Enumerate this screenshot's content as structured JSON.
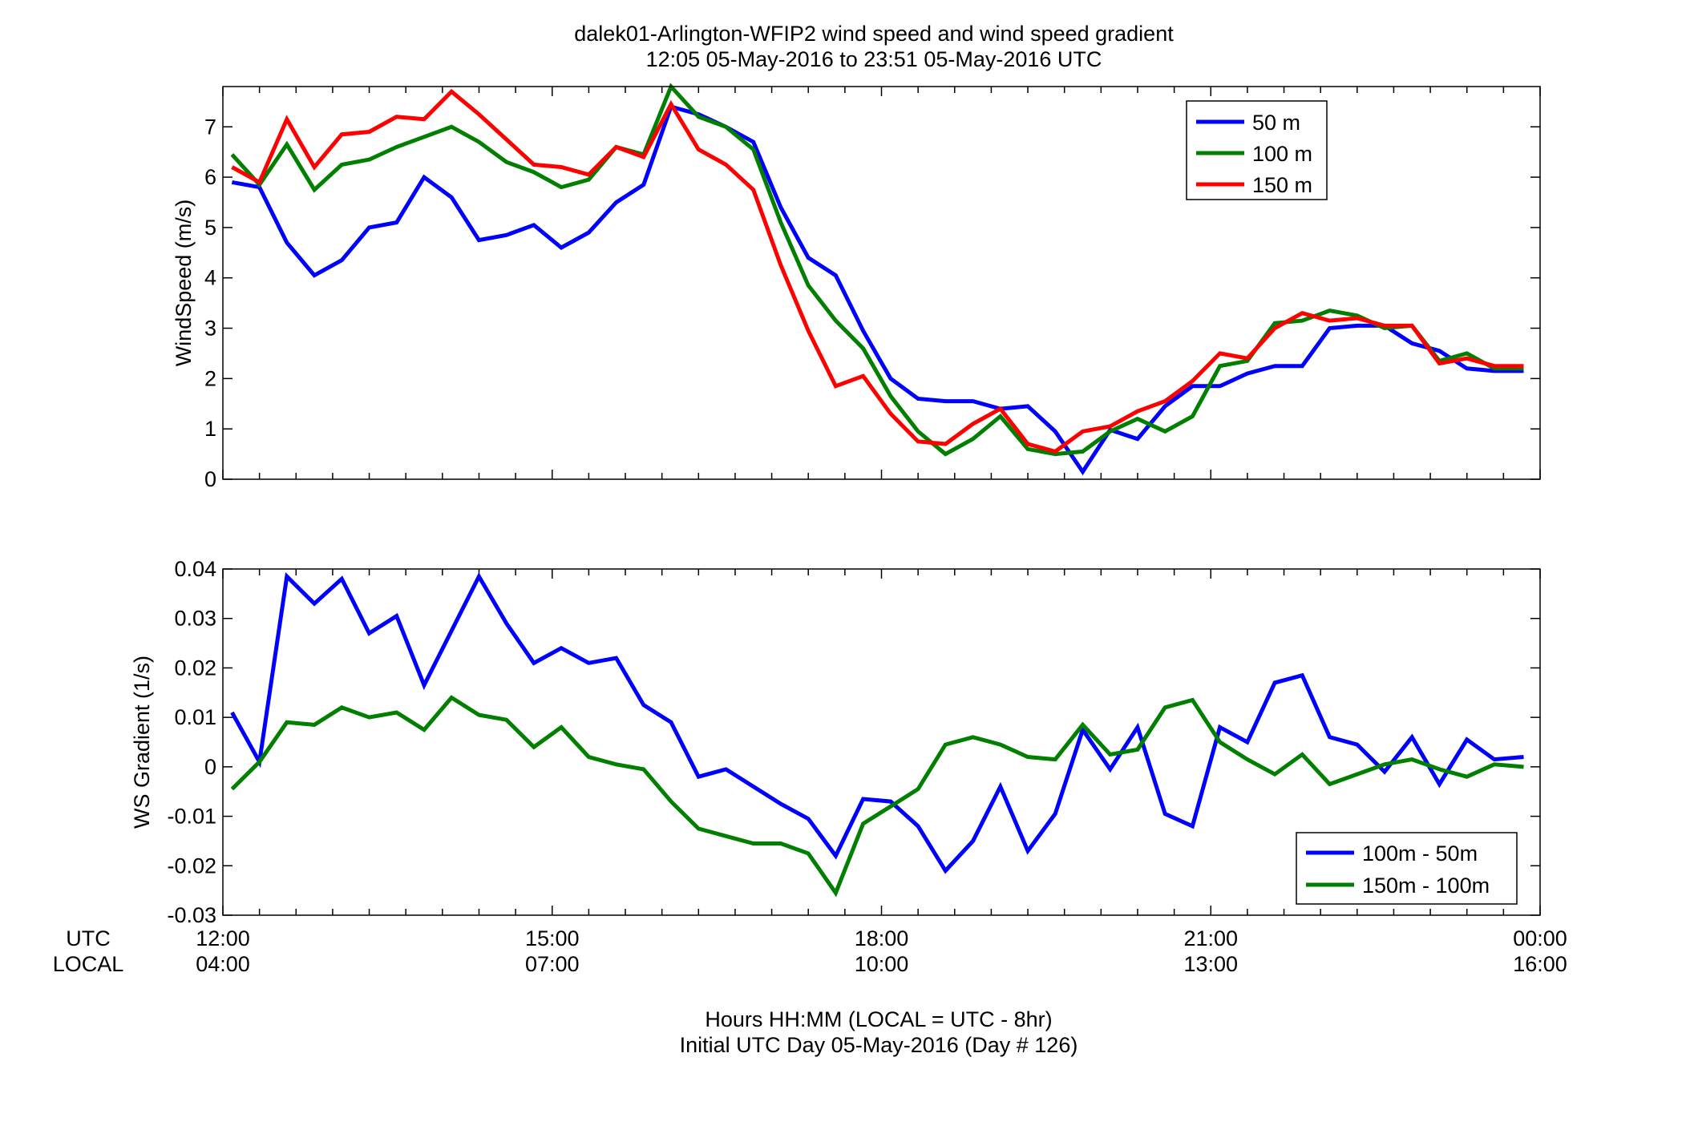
{
  "title": {
    "line1": "dalek01-Arlington-WFIP2  wind speed and wind speed gradient",
    "line2": "12:05 05-May-2016 to 23:51 05-May-2016  UTC"
  },
  "xaxis": {
    "utc_row_label": "UTC",
    "local_row_label": "LOCAL",
    "utc_ticks": [
      "12:00",
      "15:00",
      "18:00",
      "21:00",
      "00:00"
    ],
    "local_ticks": [
      "04:00",
      "07:00",
      "10:00",
      "13:00",
      "16:00"
    ],
    "xlabel_line1": "Hours HH:MM  (LOCAL = UTC - 8hr)",
    "xlabel_line2": "Initial UTC Day 05-May-2016 (Day # 126)"
  },
  "chart_data": [
    {
      "type": "line",
      "ylabel": "WindSpeed (m/s)",
      "xlim": [
        12,
        24
      ],
      "ylim": [
        0,
        7.8
      ],
      "yticks": [
        0,
        1,
        2,
        3,
        4,
        5,
        6,
        7
      ],
      "ytick_labels": [
        "0",
        "1",
        "2",
        "3",
        "4",
        "5",
        "6",
        "7"
      ],
      "legend_position": "top-right",
      "x": [
        12.083,
        12.333,
        12.583,
        12.833,
        13.083,
        13.333,
        13.583,
        13.833,
        14.083,
        14.333,
        14.583,
        14.833,
        15.083,
        15.333,
        15.583,
        15.833,
        16.083,
        16.333,
        16.583,
        16.833,
        17.083,
        17.333,
        17.583,
        17.833,
        18.083,
        18.333,
        18.583,
        18.833,
        19.083,
        19.333,
        19.583,
        19.833,
        20.083,
        20.333,
        20.583,
        20.833,
        21.083,
        21.333,
        21.583,
        21.833,
        22.083,
        22.333,
        22.583,
        22.833,
        23.083,
        23.333,
        23.583,
        23.85
      ],
      "series": [
        {
          "name": "50 m",
          "color": "#0000ff",
          "values": [
            5.9,
            5.8,
            4.7,
            4.05,
            4.35,
            5.0,
            5.1,
            6.0,
            5.6,
            4.75,
            4.85,
            5.05,
            4.6,
            4.9,
            5.5,
            5.85,
            7.4,
            7.25,
            7.0,
            6.7,
            5.4,
            4.4,
            4.05,
            2.95,
            2.0,
            1.6,
            1.55,
            1.55,
            1.4,
            1.45,
            0.95,
            0.15,
            0.98,
            0.8,
            1.45,
            1.85,
            1.85,
            2.1,
            2.25,
            2.25,
            3.0,
            3.05,
            3.05,
            2.7,
            2.55,
            2.2,
            2.15,
            2.15
          ]
        },
        {
          "name": "100 m",
          "color": "#007f00",
          "values": [
            6.45,
            5.85,
            6.65,
            5.75,
            6.25,
            6.35,
            6.6,
            6.8,
            7.0,
            6.7,
            6.3,
            6.1,
            5.8,
            5.95,
            6.6,
            6.45,
            7.8,
            7.2,
            7.0,
            6.55,
            5.1,
            3.85,
            3.15,
            2.6,
            1.65,
            0.95,
            0.5,
            0.8,
            1.25,
            0.6,
            0.5,
            0.55,
            0.95,
            1.2,
            0.95,
            1.25,
            2.25,
            2.35,
            3.1,
            3.15,
            3.35,
            3.25,
            3.0,
            3.05,
            2.35,
            2.5,
            2.2,
            2.2
          ]
        },
        {
          "name": "150 m",
          "color": "#ff0000",
          "values": [
            6.2,
            5.9,
            7.15,
            6.2,
            6.85,
            6.9,
            7.2,
            7.15,
            7.7,
            7.25,
            6.75,
            6.25,
            6.2,
            6.05,
            6.6,
            6.4,
            7.45,
            6.55,
            6.25,
            5.75,
            4.25,
            2.95,
            1.85,
            2.05,
            1.3,
            0.75,
            0.7,
            1.1,
            1.4,
            0.7,
            0.55,
            0.95,
            1.05,
            1.35,
            1.55,
            1.95,
            2.5,
            2.4,
            3.0,
            3.3,
            3.15,
            3.2,
            3.05,
            3.05,
            2.3,
            2.4,
            2.25,
            2.25
          ]
        }
      ]
    },
    {
      "type": "line",
      "ylabel": "WS Gradient (1/s)",
      "xlim": [
        12,
        24
      ],
      "ylim": [
        -0.03,
        0.04
      ],
      "yticks": [
        -0.03,
        -0.02,
        -0.01,
        0,
        0.01,
        0.02,
        0.03,
        0.04
      ],
      "ytick_labels": [
        "-0.03",
        "-0.02",
        "-0.01",
        "0",
        "0.01",
        "0.02",
        "0.03",
        "0.04"
      ],
      "legend_position": "bottom-right",
      "x": [
        12.083,
        12.333,
        12.583,
        12.833,
        13.083,
        13.333,
        13.583,
        13.833,
        14.083,
        14.333,
        14.583,
        14.833,
        15.083,
        15.333,
        15.583,
        15.833,
        16.083,
        16.333,
        16.583,
        16.833,
        17.083,
        17.333,
        17.583,
        17.833,
        18.083,
        18.333,
        18.583,
        18.833,
        19.083,
        19.333,
        19.583,
        19.833,
        20.083,
        20.333,
        20.583,
        20.833,
        21.083,
        21.333,
        21.583,
        21.833,
        22.083,
        22.333,
        22.583,
        22.833,
        23.083,
        23.333,
        23.583,
        23.85
      ],
      "series": [
        {
          "name": "100m - 50m",
          "color": "#0000ff",
          "values": [
            0.011,
            0.001,
            0.0385,
            0.033,
            0.038,
            0.027,
            0.0305,
            0.0165,
            0.0275,
            0.0385,
            0.029,
            0.021,
            0.024,
            0.021,
            0.022,
            0.0125,
            0.009,
            -0.002,
            -0.0005,
            -0.004,
            -0.0075,
            -0.0105,
            -0.018,
            -0.0065,
            -0.007,
            -0.012,
            -0.021,
            -0.015,
            -0.004,
            -0.017,
            -0.0095,
            0.0075,
            -0.0005,
            0.008,
            -0.0095,
            -0.012,
            0.008,
            0.005,
            0.017,
            0.0185,
            0.006,
            0.0045,
            -0.001,
            0.006,
            -0.0035,
            0.0055,
            0.0015,
            0.002
          ]
        },
        {
          "name": "150m - 100m",
          "color": "#007f00",
          "values": [
            -0.0045,
            0.001,
            0.009,
            0.0085,
            0.012,
            0.01,
            0.011,
            0.0075,
            0.014,
            0.0105,
            0.0095,
            0.004,
            0.008,
            0.002,
            0.0005,
            -0.0005,
            -0.007,
            -0.0125,
            -0.014,
            -0.0155,
            -0.0155,
            -0.0175,
            -0.0255,
            -0.0115,
            -0.008,
            -0.0045,
            0.0045,
            0.006,
            0.0045,
            0.002,
            0.0015,
            0.0085,
            0.0025,
            0.0035,
            0.012,
            0.0135,
            0.005,
            0.0015,
            -0.0015,
            0.0025,
            -0.0035,
            -0.0015,
            0.0005,
            0.0015,
            -0.0005,
            -0.002,
            0.0005,
            0.0
          ]
        }
      ]
    }
  ]
}
